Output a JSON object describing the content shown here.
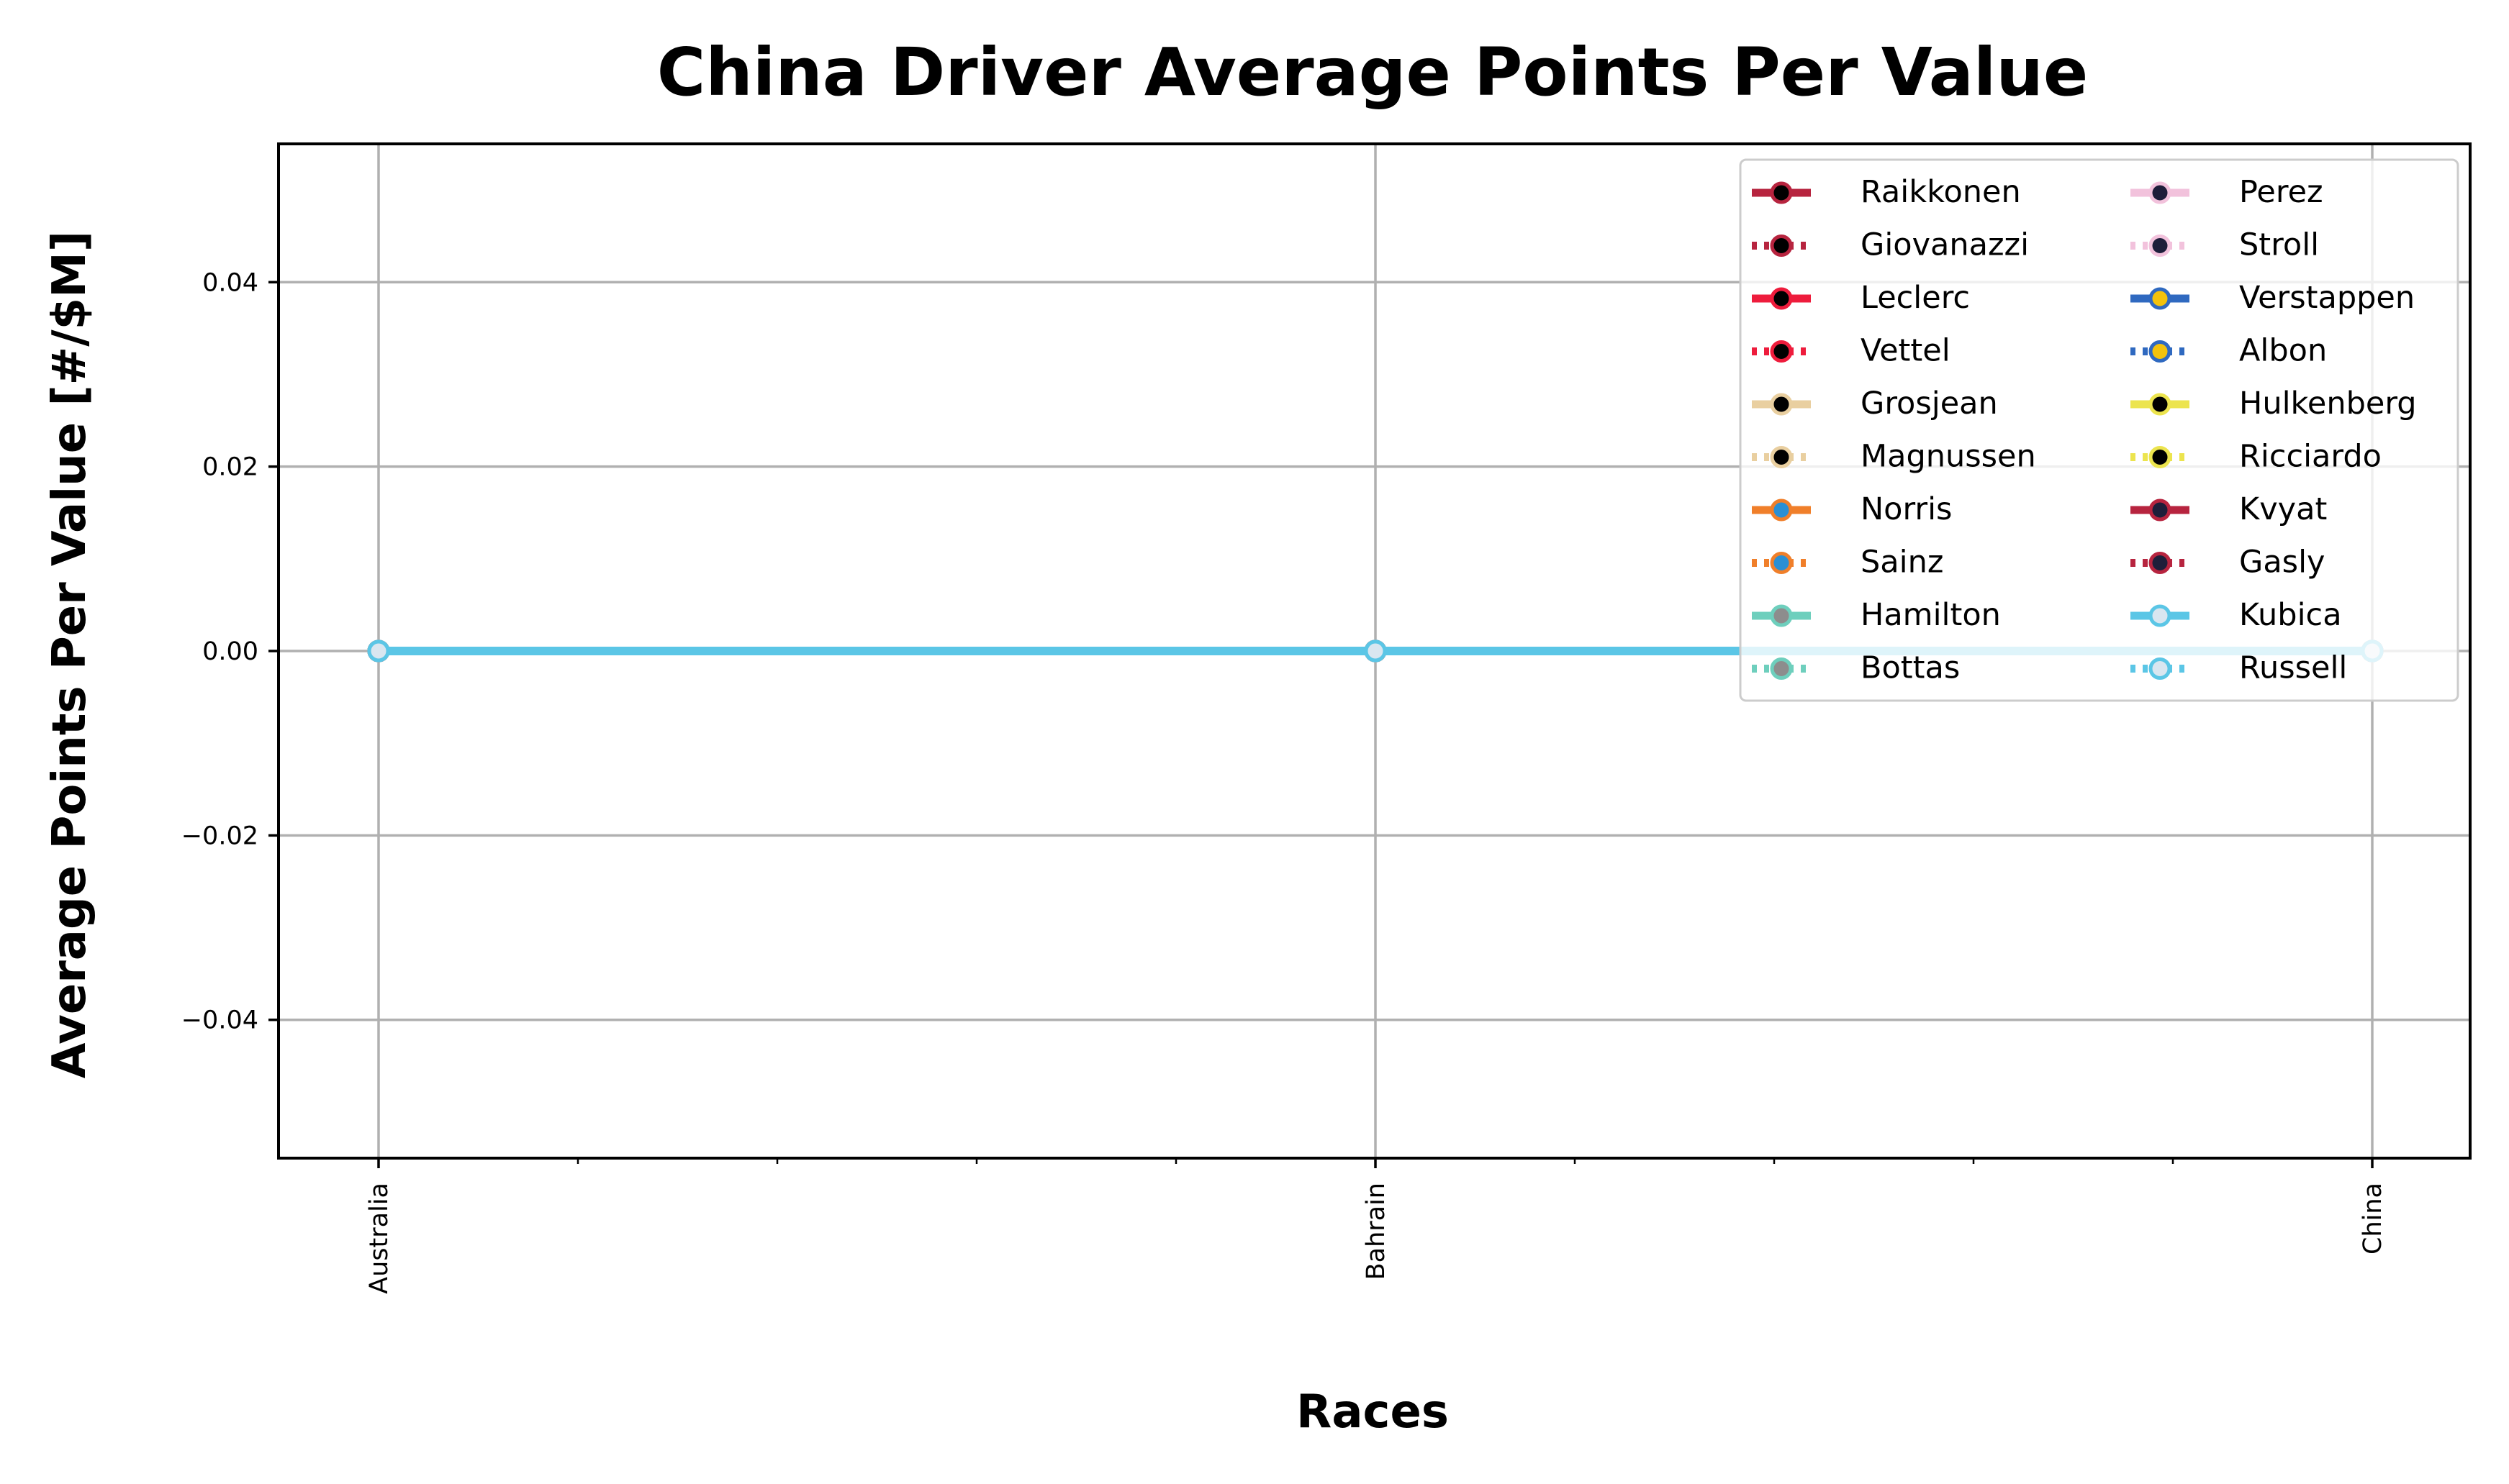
{
  "chart_data": {
    "type": "line",
    "title": "China Driver Average Points Per Value",
    "xlabel": "Races",
    "ylabel": "Average Points Per Value [#/$M]",
    "categories": [
      "Australia",
      "Bahrain",
      "China"
    ],
    "ylim": [
      -0.055,
      0.055
    ],
    "yticks": [
      0.04,
      0.02,
      0.0,
      -0.02,
      -0.04
    ],
    "ytick_labels": [
      "0.04",
      "0.02",
      "0.00",
      "−0.02",
      "−0.04"
    ],
    "grid": true,
    "legend": {
      "placement": "top-right",
      "columns": 2
    },
    "series": [
      {
        "name": "Raikkonen",
        "values": [
          0,
          0,
          0
        ],
        "color": "#b7243f",
        "marker_color": "#000000",
        "dash": "solid"
      },
      {
        "name": "Giovanazzi",
        "values": [
          0,
          0,
          0
        ],
        "color": "#b7243f",
        "marker_color": "#000000",
        "dash": "dotted"
      },
      {
        "name": "Leclerc",
        "values": [
          0,
          0,
          0
        ],
        "color": "#ee1c3c",
        "marker_color": "#000000",
        "dash": "solid"
      },
      {
        "name": "Vettel",
        "values": [
          0,
          0,
          0
        ],
        "color": "#ee1c3c",
        "marker_color": "#000000",
        "dash": "dotted"
      },
      {
        "name": "Grosjean",
        "values": [
          0,
          0,
          0
        ],
        "color": "#e9cfa0",
        "marker_color": "#000000",
        "dash": "solid"
      },
      {
        "name": "Magnussen",
        "values": [
          0,
          0,
          0
        ],
        "color": "#e9cfa0",
        "marker_color": "#000000",
        "dash": "dotted"
      },
      {
        "name": "Norris",
        "values": [
          0,
          0,
          0
        ],
        "color": "#f07f2a",
        "marker_color": "#2a8fd4",
        "dash": "solid"
      },
      {
        "name": "Sainz",
        "values": [
          0,
          0,
          0
        ],
        "color": "#f07f2a",
        "marker_color": "#2a8fd4",
        "dash": "dotted"
      },
      {
        "name": "Hamilton",
        "values": [
          0,
          0,
          0
        ],
        "color": "#6ecfbd",
        "marker_color": "#8d8d8d",
        "dash": "solid"
      },
      {
        "name": "Bottas",
        "values": [
          0,
          0,
          0
        ],
        "color": "#6ecfbd",
        "marker_color": "#8d8d8d",
        "dash": "dotted"
      },
      {
        "name": "Perez",
        "values": [
          0,
          0,
          0
        ],
        "color": "#f2c2dc",
        "marker_color": "#1e1e3a",
        "dash": "solid"
      },
      {
        "name": "Stroll",
        "values": [
          0,
          0,
          0
        ],
        "color": "#f2c2dc",
        "marker_color": "#1e1e3a",
        "dash": "dotted"
      },
      {
        "name": "Verstappen",
        "values": [
          0,
          0,
          0
        ],
        "color": "#2f69c0",
        "marker_color": "#f3c20c",
        "dash": "solid"
      },
      {
        "name": "Albon",
        "values": [
          0,
          0,
          0
        ],
        "color": "#2f69c0",
        "marker_color": "#f3c20c",
        "dash": "dotted"
      },
      {
        "name": "Hulkenberg",
        "values": [
          0,
          0,
          0
        ],
        "color": "#ece44e",
        "marker_color": "#000000",
        "dash": "solid"
      },
      {
        "name": "Ricciardo",
        "values": [
          0,
          0,
          0
        ],
        "color": "#ece44e",
        "marker_color": "#000000",
        "dash": "dotted"
      },
      {
        "name": "Kvyat",
        "values": [
          0,
          0,
          0
        ],
        "color": "#b7243f",
        "marker_color": "#1e1e3a",
        "dash": "solid"
      },
      {
        "name": "Gasly",
        "values": [
          0,
          0,
          0
        ],
        "color": "#b7243f",
        "marker_color": "#1e1e3a",
        "dash": "dotted"
      },
      {
        "name": "Kubica",
        "values": [
          0,
          0,
          0
        ],
        "color": "#5bc6e6",
        "marker_color": "#d9e6f0",
        "dash": "solid"
      },
      {
        "name": "Russell",
        "values": [
          0,
          0,
          0
        ],
        "color": "#5bc6e6",
        "marker_color": "#d9e6f0",
        "dash": "dotted"
      }
    ]
  }
}
